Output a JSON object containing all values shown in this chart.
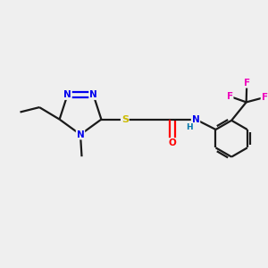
{
  "background_color": "#efefef",
  "bond_color": "#1a1a1a",
  "atom_colors": {
    "N": "#0000ee",
    "S": "#ccbb00",
    "O": "#ff0000",
    "F": "#ee00bb",
    "C": "#1a1a1a",
    "H": "#0077aa"
  },
  "figsize": [
    3.0,
    3.0
  ],
  "dpi": 100,
  "lw": 1.6
}
